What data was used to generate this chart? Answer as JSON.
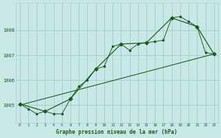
{
  "title": "Graphe pression niveau de la mer (hPa)",
  "bg_color": "#c8e8e8",
  "grid_color": "#aacece",
  "line_color": "#1a5c1a",
  "marker_color": "#1a5c1a",
  "xlim": [
    -0.5,
    23.5
  ],
  "ylim": [
    1004.3,
    1009.1
  ],
  "yticks": [
    1005,
    1006,
    1007,
    1008
  ],
  "xticks": [
    0,
    1,
    2,
    3,
    4,
    5,
    6,
    7,
    8,
    9,
    10,
    11,
    12,
    13,
    14,
    15,
    16,
    17,
    18,
    19,
    20,
    21,
    22,
    23
  ],
  "series1_x": [
    0,
    1,
    2,
    3,
    4,
    5,
    6,
    7,
    8,
    9,
    10,
    11,
    12,
    13,
    14,
    15,
    16,
    17,
    18,
    19,
    20,
    21,
    22,
    23
  ],
  "series1_y": [
    1005.05,
    1004.85,
    1004.65,
    1004.75,
    1004.65,
    1004.65,
    1005.25,
    1005.75,
    1006.0,
    1006.45,
    1006.55,
    1007.35,
    1007.45,
    1007.2,
    1007.45,
    1007.5,
    1007.55,
    1007.6,
    1008.5,
    1008.55,
    1008.35,
    1008.15,
    1007.1,
    1007.05
  ],
  "series2_x": [
    0,
    3,
    6,
    9,
    12,
    15,
    18,
    21,
    23
  ],
  "series2_y": [
    1005.05,
    1004.75,
    1005.25,
    1006.45,
    1007.45,
    1007.5,
    1008.5,
    1008.15,
    1007.05
  ],
  "series3_x": [
    0,
    23
  ],
  "series3_y": [
    1005.0,
    1007.05
  ]
}
